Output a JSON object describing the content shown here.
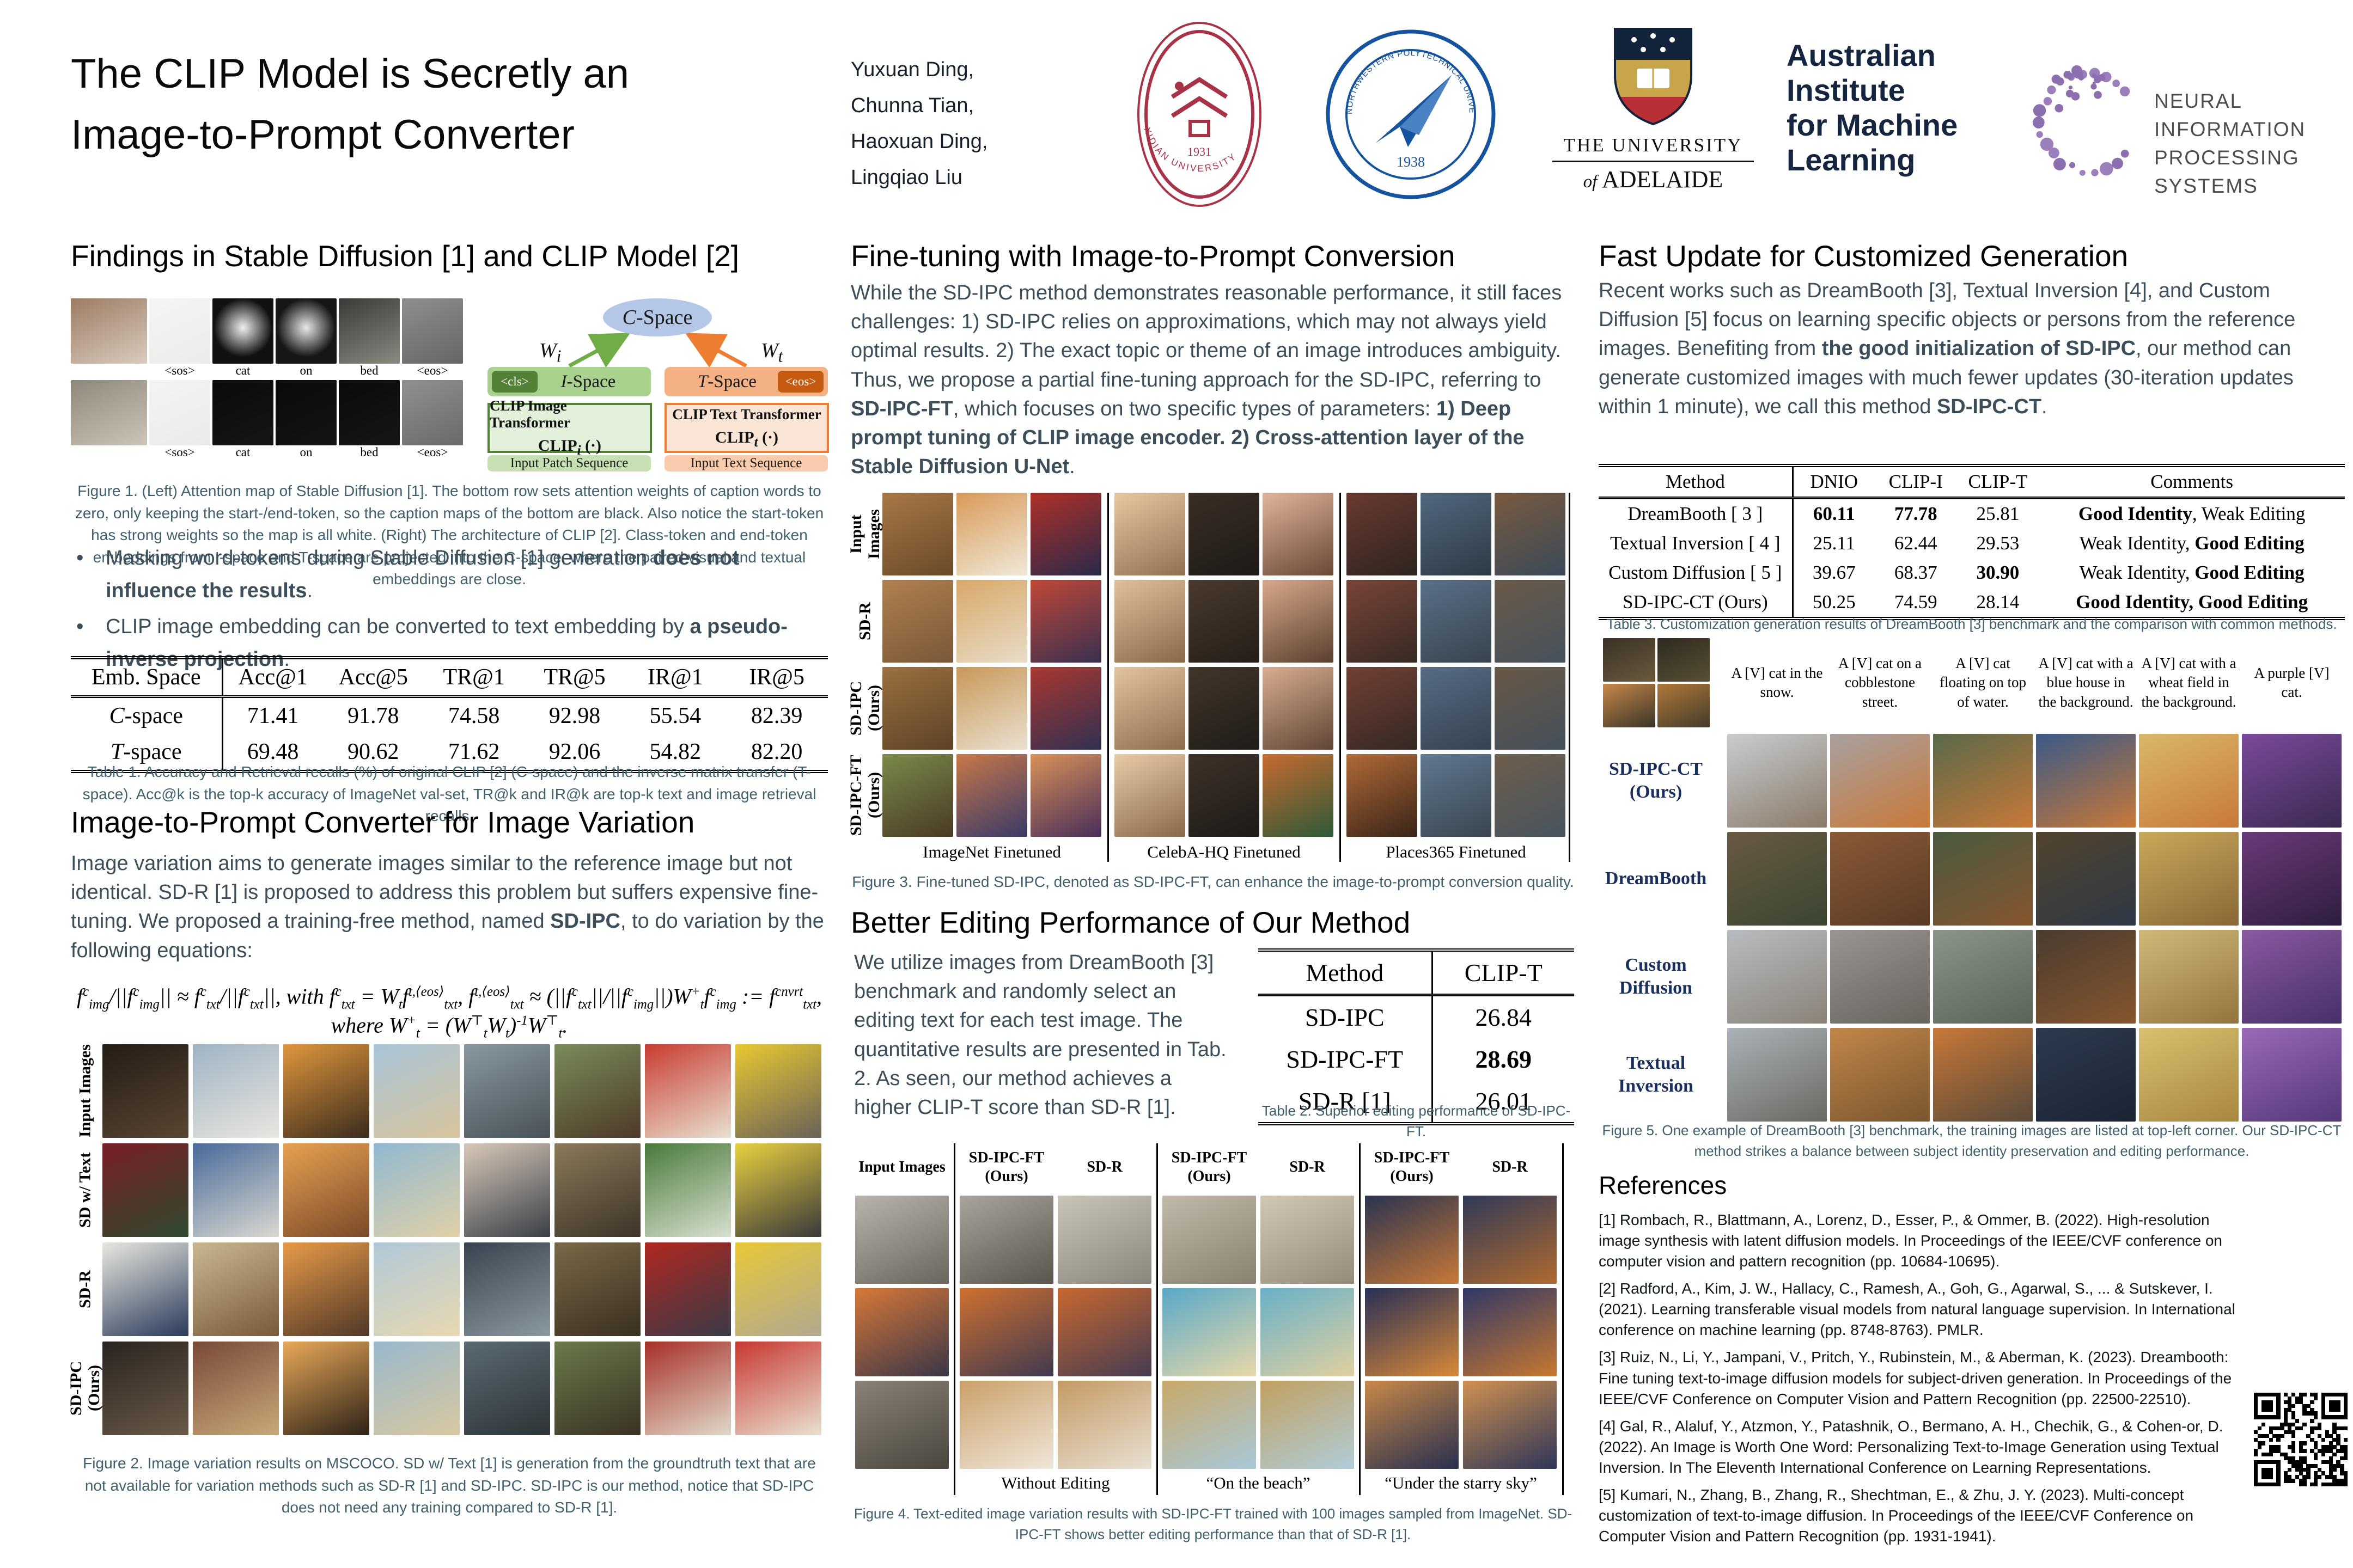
{
  "header": {
    "title_line1": "The CLIP Model is Secretly an",
    "title_line2": "Image-to-Prompt Converter",
    "authors": [
      "Yuxuan Ding,",
      "Chunna Tian,",
      "Haoxuan Ding,",
      "Lingqiao Liu"
    ],
    "logos": {
      "xidian_ring": "XIDIAN UNIVERSITY",
      "xidian_year": "1931",
      "npu_ring": "NORTHWESTERN POLYTECHNICAL UNIVERSITY",
      "npu_year": "1938",
      "adelaide_line1": "THE UNIVERSITY",
      "adelaide_of": "of",
      "adelaide_name": "ADELAIDE",
      "aiml_lines": [
        "Australian",
        "Institute",
        "for Machine",
        "Learning"
      ],
      "neurips_line1": "NEURAL INFORMATION",
      "neurips_line2": "PROCESSING SYSTEMS"
    }
  },
  "col1": {
    "heading_findings": "Findings in Stable Diffusion [1] and CLIP Model [2]",
    "figure1": {
      "left_rows": [
        {
          "photo": "#9c7c64|#d9cbbd",
          "maps": [
            "#f5f5f3|#ebebe9",
            "r:#f0f0f0|#111111",
            "r:#e8e8e8|#161616",
            "#3a3a38|#8a8a82",
            "#8e8e8c|#666664"
          ]
        },
        {
          "photo": "#8e887c|#ccc4b6",
          "maps": [
            "#f4f4f2|#eaeae8",
            "#0a0a0a|#161616",
            "#0a0a0a|#141414",
            "#0a0a0a|#161616",
            "#90908e|#6a6a68"
          ]
        }
      ],
      "token_labels": [
        "<sos>",
        "cat",
        "on",
        "bed",
        "<eos>"
      ],
      "diagram": {
        "cspace": [
          {
            "t": "C",
            "i": true
          },
          {
            "t": "-Space"
          }
        ],
        "wi": [
          {
            "t": "W",
            "i": true
          },
          {
            "t": "i",
            "sub": true,
            "i": true
          }
        ],
        "wt": [
          {
            "t": "W",
            "i": true
          },
          {
            "t": "t",
            "sub": true,
            "i": true
          }
        ],
        "ispace": [
          {
            "t": "I",
            "i": true
          },
          {
            "t": "-Space"
          }
        ],
        "tspace": [
          {
            "t": "T",
            "i": true
          },
          {
            "t": "-Space"
          }
        ],
        "cls_chip": "<cls>",
        "eos_chip": "<eos>",
        "img_box_title": "CLIP Image Transformer",
        "img_box_fn": [
          {
            "t": "CLIP",
            "b": true
          },
          {
            "t": "i",
            "sub": true,
            "i": true
          },
          {
            "t": " (·)",
            "b": true
          }
        ],
        "txt_box_title": "CLIP Text Transformer",
        "txt_box_fn": [
          {
            "t": "CLIP",
            "b": true
          },
          {
            "t": "t",
            "sub": true,
            "i": true
          },
          {
            "t": " (·)",
            "b": true
          }
        ],
        "patch_seq": "Input Patch Sequence",
        "text_seq": "Input Text Sequence"
      },
      "caption": "Figure 1. (Left) Attention map of Stable Diffusion [1]. The bottom row sets attention weights of caption words to zero, only keeping the start-/end-token, so the caption maps of the bottom are black. Also notice the start-token has strong weights so the map is all white. (Right) The architecture of CLIP [2]. Class-token and end-token embeddings from I-space and T-space are projected into the C-space, where the paired visual and textual embeddings are close."
    },
    "bullets": [
      [
        {
          "t": "Masking word-tokens during Stable Diffusion [1] generation "
        },
        {
          "t": "does not influence the results",
          "b": true
        },
        {
          "t": "."
        }
      ],
      [
        {
          "t": "CLIP image embedding can be converted to text embedding by "
        },
        {
          "t": "a pseudo-inverse projection",
          "b": true
        },
        {
          "t": "."
        }
      ]
    ],
    "table1": {
      "headers": [
        "Emb. Space",
        "Acc@1",
        "Acc@5",
        "TR@1",
        "TR@5",
        "IR@1",
        "IR@5"
      ],
      "widths": [
        "20%",
        "13.3%",
        "13.3%",
        "13.3%",
        "13.3%",
        "13.3%",
        "13.5%"
      ],
      "rows": [
        [
          [
            {
              "t": "C",
              "i": true
            },
            {
              "t": "-space"
            }
          ],
          "71.41",
          "91.78",
          "74.58",
          "92.98",
          "55.54",
          "82.39"
        ],
        [
          [
            {
              "t": "T",
              "i": true
            },
            {
              "t": "-space"
            }
          ],
          "69.48",
          "90.62",
          "71.62",
          "92.06",
          "54.82",
          "82.20"
        ]
      ],
      "caption": "Table 1. Accuracy and Retrieval recalls (%) of original CLIP [2] (C-space) and the inverse matrix transfer (T-space). Acc@k is the top-k accuracy of ImageNet val-set, TR@k and IR@k are top-k text and image retrieval recalls."
    },
    "heading_variation": "Image-to-Prompt Converter for Image Variation",
    "p_variation": [
      {
        "t": "Image variation aims to generate images similar to the reference image but not identical. SD-R [1] is proposed to address this problem but suffers expensive fine-tuning. We proposed a training-free method, named "
      },
      {
        "t": "SD-IPC",
        "b": true
      },
      {
        "t": ", to do variation by the following equations:"
      }
    ],
    "equation": "f^{c}_{img}/||f^{c}_{img}|| ≈ f^{c}_{txt}/||f^{c}_{txt}||,  with f^{c}_{txt} = W_{t}f^{t,⟨eos⟩}_{txt},  f^{t,⟨eos⟩}_{txt} ≈ (||f^{c}_{txt}||/||f^{c}_{img}||)W^{+}_{t}f^{c}_{img} := f^{cnvrt}_{txt},  where W^{+}_{t} = (W^{⊤}_{t}W_{t})^{-1}W^{⊤}_{t}.",
    "figure2": {
      "row_labels": [
        "Input Images",
        "SD w/ Text",
        "SD-R",
        "SD-IPC (Ours)"
      ],
      "tiles": [
        [
          "#241c16|#5a4632",
          "#9fb3c4|#e8e6df",
          "#e0963c|#3c2c1e",
          "#a8c4d8|#d8c49c",
          "#8898a0|#4a5258",
          "#7a8c5a|#4e3a28",
          "#c83c30|#e8e0d0",
          "#e8c830|#6a6258"
        ],
        [
          "#7a1e28|#2e4a2e",
          "#4a6a9a|#d8d8d0",
          "#e8a050|#7a4a2a",
          "#90b8d0|#e0d0a8",
          "#d8c8b8|#3a4048",
          "#8a7a5a|#3e3428",
          "#4a7a3a|#d8e0d0",
          "#e8d040|#3a3a3a"
        ],
        [
          "#e8e8e0|#2a3a5a",
          "#c8b890|#7a5a3a",
          "#e89a48|#503828",
          "#b0c8d8|#e8d8b0",
          "#3a4450|#8a98a0",
          "#7a6848|#3a3020",
          "#b02820|#3a3a48",
          "#e8c838|#b0a890"
        ],
        [
          "#2a2420|#6a5a48",
          "#7a4a38|#c8a878",
          "#e8a858|#2e2218",
          "#98b8cc|#d8c8a0",
          "#5a6a72|#2e3438",
          "#6a7a4a|#3a3224",
          "#a83028|#e0d8c8",
          "#c83830|#e8e0d0"
        ]
      ],
      "caption": "Figure 2. Image variation results on MSCOCO. SD w/ Text [1] is generation from the groundtruth text that are not available for variation methods such as SD-R [1] and SD-IPC. SD-IPC is our method, notice that SD-IPC does not need any training compared to SD-R [1]."
    }
  },
  "col2": {
    "heading_finetune": "Fine-tuning with Image-to-Prompt Conversion",
    "p_finetune": [
      {
        "t": "While the SD-IPC method demonstrates reasonable performance, it still faces challenges: 1) SD-IPC relies on approximations, which may not always yield optimal results. 2) The exact topic or theme of an image introduces ambiguity. Thus, we propose a partial fine-tuning approach for the SD-IPC, referring to "
      },
      {
        "t": "SD-IPC-FT",
        "b": true
      },
      {
        "t": ", which focuses on two specific types of parameters: "
      },
      {
        "t": "1) Deep prompt tuning of CLIP image encoder. 2) Cross-attention layer of the Stable Diffusion U-Net",
        "b": true
      },
      {
        "t": "."
      }
    ],
    "figure3": {
      "row_labels": [
        "Input Images",
        "SD-R",
        "SD-IPC (Ours)",
        "SD-IPC-FT\n(Ours)"
      ],
      "tiles": [
        [
          "#a87848|#6a4a28",
          "#d89a58|#f0e8d8",
          "#b03028|#2a2a4a",
          "#e8c8a0|#907050",
          "#3a2e26|#1e1a16",
          "#e0b498|#6a4838",
          "#6a3a30|#2e2420",
          "#52687e|#2e3a46",
          "#7a5a40|#3a4a58"
        ],
        [
          "#b08050|#7a5838",
          "#d8a868|#e8dcc8",
          "#c04838|#3a3050",
          "#e0c09a|#8a6848",
          "#4a3a2e|#241e18",
          "#d8a888|#5a4030",
          "#7a4438|#362a24",
          "#5a7088|#38444e",
          "#6a5a48|#46525e"
        ],
        [
          "#9a7040|#5e4226",
          "#c89858|#eae0d0",
          "#a83830|#323052",
          "#e2c49e|#8e6c4a",
          "#42362a|#201c18",
          "#d8ac8e|#604636",
          "#724034|#342824",
          "#566c84|#364250",
          "#685846|#44505c"
        ],
        [
          "#7a8a4a|#4a3a24",
          "#c87848|#3a3a6a",
          "#d89058|#4a2e5a",
          "#e8cca6|#8a6848",
          "#3e322a|#1e1a16",
          "#c86a30|#2e5a38",
          "#b06a38|#3a2418",
          "#607890|#3a4650",
          "#6e5e4c|#485460"
        ]
      ],
      "group_labels": [
        "ImageNet Finetuned",
        "CelebA-HQ Finetuned",
        "Places365 Finetuned"
      ],
      "caption": "Figure 3. Fine-tuned SD-IPC, denoted as SD-IPC-FT, can enhance the image-to-prompt conversion quality."
    },
    "heading_editing": "Better Editing Performance of Our Method",
    "p_editing": "We utilize images from DreamBooth [3] benchmark and randomly select an editing text for each test image. The quantitative results are presented in Tab. 2. As seen, our method achieves a higher CLIP-T score than SD-R [1].",
    "table2": {
      "headers": [
        "Method",
        "CLIP-T"
      ],
      "widths": [
        "55%",
        "45%"
      ],
      "rows": [
        [
          "SD-IPC",
          "26.84"
        ],
        [
          "SD-IPC-FT",
          [
            {
              "t": "28.69",
              "b": true
            }
          ]
        ],
        [
          "SD-R [1]",
          "26.01"
        ]
      ],
      "caption": "Table 2. Superior editing performance of SD-IPC-FT."
    },
    "figure4": {
      "col0_header": "Input Images",
      "group_headers": [
        "SD-IPC-FT\n(Ours)",
        "SD-R"
      ],
      "tiles": [
        [
          "#b8b4ac|#6a665e",
          "#a8a49c|#5a564e",
          "#c8c4b8|#8a867c",
          "#c0b8a8|#8a8270",
          "#d0c8b4|#948c78",
          "#2a3450|#c87838",
          "#303a58|#b06a30"
        ],
        [
          "#d87838|#3a3648",
          "#d07030|#403a50",
          "#c86830|#463c52",
          "#58a8c8|#e8d8a8",
          "#68b0c8|#e0d0a0",
          "#283058|#d88838",
          "#303868|#c87830"
        ],
        [
          "#8a8278|#4a463e",
          "#caa06a|#efe6d8",
          "#c49a64|#e8e0d2",
          "#c8a868|#a8c8d8",
          "#c0a060|#b0ccd8",
          "#c88848|#283050",
          "#d09050|#2e3658"
        ]
      ],
      "bottom_labels": [
        "Without Editing",
        "“On the beach”",
        "“Under the starry sky”"
      ],
      "caption": "Figure 4. Text-edited image variation results with SD-IPC-FT trained with 100 images sampled from ImageNet. SD-IPC-FT shows better editing performance than that of SD-R [1]."
    }
  },
  "col3": {
    "heading_fast": "Fast Update for Customized Generation",
    "p_fast": [
      {
        "t": "Recent works such as DreamBooth [3], Textual Inversion [4], and Custom Diffusion [5] focus on learning specific objects or persons from the reference images. Benefiting from "
      },
      {
        "t": "the good initialization of SD-IPC",
        "b": true
      },
      {
        "t": ", our method can generate customized images with much fewer updates (30-iteration updates within 1 minute), we call this method "
      },
      {
        "t": "SD-IPC-CT",
        "b": true
      },
      {
        "t": "."
      }
    ],
    "table3": {
      "headers": [
        "Method",
        "DNIO",
        "CLIP-I",
        "CLIP-T",
        "Comments"
      ],
      "widths": [
        "26%",
        "11%",
        "11%",
        "11%",
        "41%"
      ],
      "rows": [
        [
          "DreamBooth [ 3 ]",
          [
            {
              "t": "60.11",
              "b": true
            }
          ],
          [
            {
              "t": "77.78",
              "b": true
            }
          ],
          "25.81",
          [
            {
              "t": "Good Identity",
              "b": true
            },
            {
              "t": ", Weak Editing"
            }
          ]
        ],
        [
          "Textual Inversion [ 4 ]",
          "25.11",
          "62.44",
          "29.53",
          [
            {
              "t": "Weak Identity, "
            },
            {
              "t": "Good Editing",
              "b": true
            }
          ]
        ],
        [
          "Custom Diffusion [ 5 ]",
          "39.67",
          "68.37",
          [
            {
              "t": "30.90",
              "b": true
            }
          ],
          [
            {
              "t": "Weak Identity, "
            },
            {
              "t": "Good Editing",
              "b": true
            }
          ]
        ],
        [
          "SD-IPC-CT (Ours)",
          "50.25",
          "74.59",
          "28.14",
          [
            {
              "t": "Good Identity, Good Editing",
              "b": true
            }
          ]
        ]
      ],
      "caption": "Table 3. Customization generation results of DreamBooth [3] benchmark and the comparison with common methods."
    },
    "figure5": {
      "train_tiles": [
        "#3a3226|#6a5a3e",
        "#2e2a20|#585034",
        "#c88848|#3a3428",
        "#b07838|#443c2c"
      ],
      "prompts": [
        "A [V] cat in the snow.",
        "A [V] cat on a cobblestone street.",
        "A [V] cat floating on top of water.",
        "A [V] cat with a blue house in the background.",
        "A [V] cat with a wheat field in the background.",
        "A purple [V] cat."
      ],
      "row_labels": [
        "SD-IPC-CT\n(Ours)",
        "DreamBooth",
        "Custom\nDiffusion",
        "Textual\nInversion"
      ],
      "tiles": [
        [
          "#c8ccd0|#8a7a68",
          "#a8a0a0|#c87838",
          "#5a6a4a|#c87838",
          "#3a5a88|#c87838",
          "#d8b868|#c87838",
          "#7a4a9a|#3a2a52"
        ],
        [
          "#6a5a42|#3a4632",
          "#8a5a36|#5a3a24",
          "#4a5a40|#86562e",
          "#52442e|#2e3846",
          "#c8a858|#8a6838",
          "#6a3a7a|#2e1e3e"
        ],
        [
          "#b8bcc0|#8a8278",
          "#9a9492|#6a645e",
          "#8a9488|#5a6458",
          "#4a3c30|#86562e",
          "#d0b878|#94743e",
          "#8a5aa0|#46306a"
        ],
        [
          "#aab2b8|#6a6a62",
          "#c08648|#7a5630",
          "#c87838|#5a4a3a",
          "#2e3a50|#1a2433",
          "#d8c070|#a8863e",
          "#9a6ab8|#54387a"
        ]
      ],
      "caption": "Figure 5. One example of DreamBooth [3] benchmark, the training images are listed at top-left corner. Our SD-IPC-CT method strikes a balance between subject identity preservation and editing performance."
    },
    "references_heading": "References",
    "references": [
      "[1] Rombach, R., Blattmann, A., Lorenz, D., Esser, P., & Ommer, B. (2022). High-resolution image synthesis with latent diffusion models. In Proceedings of the IEEE/CVF conference on computer vision and pattern recognition (pp. 10684-10695).",
      "[2] Radford, A., Kim, J. W., Hallacy, C., Ramesh, A., Goh, G., Agarwal, S., ... & Sutskever, I. (2021). Learning transferable visual models from natural language supervision. In International conference on machine learning (pp. 8748-8763). PMLR.",
      "[3] Ruiz, N., Li, Y., Jampani, V., Pritch, Y., Rubinstein, M., & Aberman, K. (2023). Dreambooth: Fine tuning text-to-image diffusion models for subject-driven generation. In Proceedings of the IEEE/CVF Conference on Computer Vision and Pattern Recognition (pp. 22500-22510).",
      "[4] Gal, R., Alaluf, Y., Atzmon, Y., Patashnik, O., Bermano, A. H., Chechik, G., & Cohen-or, D. (2022). An Image is Worth One Word: Personalizing Text-to-Image Generation using Textual Inversion. In The Eleventh International Conference on Learning Representations.",
      "[5] Kumari, N., Zhang, B., Zhang, R., Shechtman, E., & Zhu, J. Y. (2023). Multi-concept customization of text-to-image diffusion. In Proceedings of the IEEE/CVF Conference on Computer Vision and Pattern Recognition (pp. 1931-1941)."
    ]
  }
}
